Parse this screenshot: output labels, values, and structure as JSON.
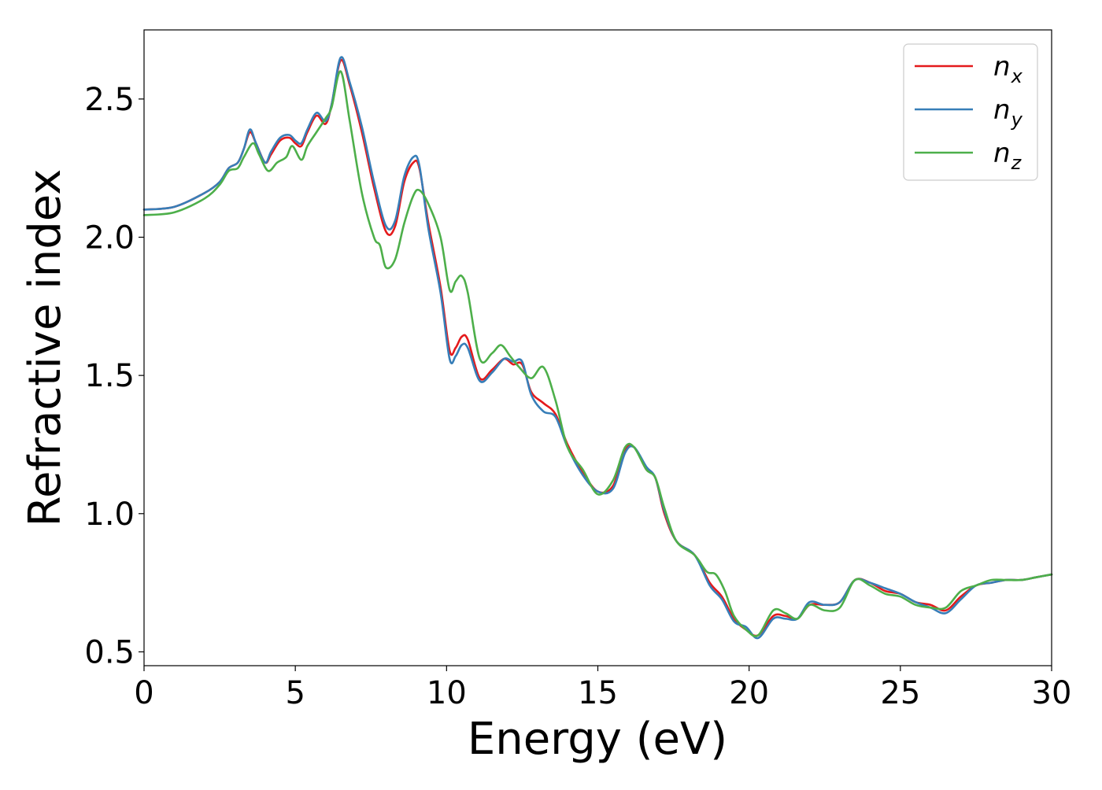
{
  "chart_data": {
    "type": "line",
    "title": "",
    "xlabel": "Energy (eV)",
    "ylabel": "Refractive index",
    "xlim": [
      0,
      30
    ],
    "ylim": [
      0.45,
      2.75
    ],
    "xticks": [
      0,
      5,
      10,
      15,
      20,
      25,
      30
    ],
    "xtick_labels": [
      "0",
      "5",
      "10",
      "15",
      "20",
      "25",
      "30"
    ],
    "yticks": [
      0.5,
      1.0,
      1.5,
      2.0,
      2.5
    ],
    "ytick_labels": [
      "0.5",
      "1.0",
      "1.5",
      "2.0",
      "2.5"
    ],
    "grid": false,
    "legend_position": "top-right",
    "series": [
      {
        "name": "n_x",
        "label_main": "n",
        "label_sub": "x",
        "color": "#e41a1c",
        "points": [
          [
            0,
            2.1
          ],
          [
            1,
            2.11
          ],
          [
            2,
            2.16
          ],
          [
            2.5,
            2.2
          ],
          [
            2.8,
            2.25
          ],
          [
            3.1,
            2.27
          ],
          [
            3.3,
            2.32
          ],
          [
            3.5,
            2.38
          ],
          [
            3.7,
            2.34
          ],
          [
            4.0,
            2.27
          ],
          [
            4.2,
            2.3
          ],
          [
            4.5,
            2.35
          ],
          [
            4.8,
            2.36
          ],
          [
            5.0,
            2.34
          ],
          [
            5.2,
            2.33
          ],
          [
            5.4,
            2.38
          ],
          [
            5.7,
            2.44
          ],
          [
            6.0,
            2.41
          ],
          [
            6.2,
            2.48
          ],
          [
            6.5,
            2.64
          ],
          [
            6.8,
            2.55
          ],
          [
            7.2,
            2.38
          ],
          [
            7.6,
            2.18
          ],
          [
            8.0,
            2.02
          ],
          [
            8.3,
            2.04
          ],
          [
            8.6,
            2.2
          ],
          [
            8.9,
            2.27
          ],
          [
            9.1,
            2.25
          ],
          [
            9.4,
            2.05
          ],
          [
            9.8,
            1.82
          ],
          [
            10.1,
            1.59
          ],
          [
            10.3,
            1.6
          ],
          [
            10.5,
            1.64
          ],
          [
            10.7,
            1.63
          ],
          [
            11.1,
            1.49
          ],
          [
            11.5,
            1.52
          ],
          [
            11.9,
            1.56
          ],
          [
            12.2,
            1.54
          ],
          [
            12.5,
            1.54
          ],
          [
            12.8,
            1.44
          ],
          [
            13.2,
            1.4
          ],
          [
            13.6,
            1.36
          ],
          [
            14.0,
            1.25
          ],
          [
            14.5,
            1.15
          ],
          [
            15.0,
            1.08
          ],
          [
            15.5,
            1.1
          ],
          [
            15.9,
            1.23
          ],
          [
            16.2,
            1.24
          ],
          [
            16.6,
            1.16
          ],
          [
            16.9,
            1.13
          ],
          [
            17.2,
            1.0
          ],
          [
            17.6,
            0.9
          ],
          [
            18.2,
            0.85
          ],
          [
            18.7,
            0.75
          ],
          [
            19.1,
            0.7
          ],
          [
            19.5,
            0.62
          ],
          [
            19.9,
            0.58
          ],
          [
            20.3,
            0.56
          ],
          [
            20.8,
            0.63
          ],
          [
            21.2,
            0.63
          ],
          [
            21.6,
            0.62
          ],
          [
            22.0,
            0.67
          ],
          [
            22.5,
            0.67
          ],
          [
            23.0,
            0.68
          ],
          [
            23.5,
            0.76
          ],
          [
            24.0,
            0.75
          ],
          [
            24.5,
            0.72
          ],
          [
            25.0,
            0.71
          ],
          [
            25.5,
            0.68
          ],
          [
            26.0,
            0.67
          ],
          [
            26.5,
            0.65
          ],
          [
            27.0,
            0.7
          ],
          [
            27.5,
            0.74
          ],
          [
            28.0,
            0.75
          ],
          [
            28.5,
            0.76
          ],
          [
            29.0,
            0.76
          ],
          [
            29.5,
            0.77
          ],
          [
            30,
            0.78
          ]
        ]
      },
      {
        "name": "n_y",
        "label_main": "n",
        "label_sub": "y",
        "color": "#377eb8",
        "points": [
          [
            0,
            2.1
          ],
          [
            1,
            2.11
          ],
          [
            2,
            2.16
          ],
          [
            2.5,
            2.2
          ],
          [
            2.8,
            2.25
          ],
          [
            3.1,
            2.27
          ],
          [
            3.3,
            2.32
          ],
          [
            3.5,
            2.39
          ],
          [
            3.7,
            2.34
          ],
          [
            4.0,
            2.27
          ],
          [
            4.2,
            2.31
          ],
          [
            4.5,
            2.36
          ],
          [
            4.8,
            2.37
          ],
          [
            5.0,
            2.35
          ],
          [
            5.2,
            2.34
          ],
          [
            5.4,
            2.39
          ],
          [
            5.7,
            2.45
          ],
          [
            6.0,
            2.42
          ],
          [
            6.2,
            2.48
          ],
          [
            6.5,
            2.65
          ],
          [
            6.8,
            2.56
          ],
          [
            7.2,
            2.4
          ],
          [
            7.6,
            2.2
          ],
          [
            8.0,
            2.04
          ],
          [
            8.3,
            2.06
          ],
          [
            8.6,
            2.22
          ],
          [
            8.9,
            2.29
          ],
          [
            9.1,
            2.26
          ],
          [
            9.4,
            2.03
          ],
          [
            9.8,
            1.8
          ],
          [
            10.1,
            1.56
          ],
          [
            10.3,
            1.57
          ],
          [
            10.5,
            1.61
          ],
          [
            10.7,
            1.6
          ],
          [
            11.1,
            1.48
          ],
          [
            11.5,
            1.51
          ],
          [
            11.9,
            1.56
          ],
          [
            12.2,
            1.55
          ],
          [
            12.5,
            1.55
          ],
          [
            12.8,
            1.43
          ],
          [
            13.2,
            1.37
          ],
          [
            13.6,
            1.35
          ],
          [
            14.0,
            1.24
          ],
          [
            14.5,
            1.14
          ],
          [
            15.0,
            1.08
          ],
          [
            15.5,
            1.09
          ],
          [
            15.9,
            1.22
          ],
          [
            16.2,
            1.24
          ],
          [
            16.6,
            1.17
          ],
          [
            16.9,
            1.13
          ],
          [
            17.2,
            1.01
          ],
          [
            17.6,
            0.9
          ],
          [
            18.2,
            0.85
          ],
          [
            18.7,
            0.74
          ],
          [
            19.1,
            0.69
          ],
          [
            19.5,
            0.61
          ],
          [
            19.9,
            0.59
          ],
          [
            20.3,
            0.55
          ],
          [
            20.8,
            0.62
          ],
          [
            21.2,
            0.62
          ],
          [
            21.6,
            0.62
          ],
          [
            22.0,
            0.68
          ],
          [
            22.5,
            0.67
          ],
          [
            23.0,
            0.68
          ],
          [
            23.5,
            0.76
          ],
          [
            24.0,
            0.75
          ],
          [
            24.5,
            0.73
          ],
          [
            25.0,
            0.71
          ],
          [
            25.5,
            0.68
          ],
          [
            26.0,
            0.66
          ],
          [
            26.5,
            0.64
          ],
          [
            27.0,
            0.69
          ],
          [
            27.5,
            0.74
          ],
          [
            28.0,
            0.75
          ],
          [
            28.5,
            0.76
          ],
          [
            29.0,
            0.76
          ],
          [
            29.5,
            0.77
          ],
          [
            30,
            0.78
          ]
        ]
      },
      {
        "name": "n_z",
        "label_main": "n",
        "label_sub": "z",
        "color": "#4daf4a",
        "points": [
          [
            0,
            2.08
          ],
          [
            1,
            2.09
          ],
          [
            2,
            2.14
          ],
          [
            2.5,
            2.19
          ],
          [
            2.8,
            2.24
          ],
          [
            3.1,
            2.25
          ],
          [
            3.3,
            2.29
          ],
          [
            3.6,
            2.34
          ],
          [
            3.8,
            2.3
          ],
          [
            4.1,
            2.24
          ],
          [
            4.4,
            2.27
          ],
          [
            4.7,
            2.29
          ],
          [
            4.9,
            2.33
          ],
          [
            5.2,
            2.28
          ],
          [
            5.4,
            2.33
          ],
          [
            5.7,
            2.38
          ],
          [
            6.0,
            2.43
          ],
          [
            6.2,
            2.47
          ],
          [
            6.5,
            2.6
          ],
          [
            6.8,
            2.42
          ],
          [
            7.2,
            2.16
          ],
          [
            7.6,
            2.0
          ],
          [
            7.8,
            1.97
          ],
          [
            8.0,
            1.89
          ],
          [
            8.3,
            1.92
          ],
          [
            8.6,
            2.05
          ],
          [
            8.9,
            2.15
          ],
          [
            9.1,
            2.17
          ],
          [
            9.4,
            2.12
          ],
          [
            9.8,
            2.0
          ],
          [
            10.1,
            1.81
          ],
          [
            10.3,
            1.84
          ],
          [
            10.5,
            1.86
          ],
          [
            10.7,
            1.8
          ],
          [
            11.1,
            1.56
          ],
          [
            11.5,
            1.58
          ],
          [
            11.8,
            1.61
          ],
          [
            12.1,
            1.57
          ],
          [
            12.4,
            1.53
          ],
          [
            12.8,
            1.49
          ],
          [
            13.2,
            1.53
          ],
          [
            13.6,
            1.41
          ],
          [
            14.0,
            1.24
          ],
          [
            14.5,
            1.16
          ],
          [
            15.0,
            1.07
          ],
          [
            15.5,
            1.12
          ],
          [
            15.9,
            1.24
          ],
          [
            16.2,
            1.24
          ],
          [
            16.6,
            1.16
          ],
          [
            16.9,
            1.13
          ],
          [
            17.2,
            1.02
          ],
          [
            17.6,
            0.9
          ],
          [
            18.2,
            0.85
          ],
          [
            18.6,
            0.79
          ],
          [
            18.9,
            0.78
          ],
          [
            19.2,
            0.72
          ],
          [
            19.5,
            0.63
          ],
          [
            19.9,
            0.58
          ],
          [
            20.3,
            0.56
          ],
          [
            20.8,
            0.65
          ],
          [
            21.2,
            0.64
          ],
          [
            21.6,
            0.62
          ],
          [
            22.0,
            0.67
          ],
          [
            22.5,
            0.65
          ],
          [
            23.0,
            0.66
          ],
          [
            23.5,
            0.76
          ],
          [
            24.0,
            0.74
          ],
          [
            24.5,
            0.71
          ],
          [
            25.0,
            0.7
          ],
          [
            25.5,
            0.67
          ],
          [
            26.0,
            0.66
          ],
          [
            26.5,
            0.66
          ],
          [
            27.0,
            0.72
          ],
          [
            27.5,
            0.74
          ],
          [
            28.0,
            0.76
          ],
          [
            28.5,
            0.76
          ],
          [
            29.0,
            0.76
          ],
          [
            29.5,
            0.77
          ],
          [
            30,
            0.78
          ]
        ]
      }
    ]
  }
}
